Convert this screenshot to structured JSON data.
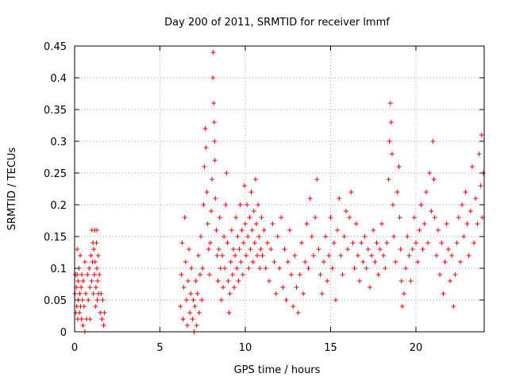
{
  "chart_data": {
    "type": "scatter",
    "title": "Day 200 of 2011, SRMTID for receiver lmmf",
    "xlabel": "GPS time / hours",
    "ylabel": "SRMTID / TECUs",
    "xlim": [
      0,
      24
    ],
    "ylim": [
      0,
      0.45
    ],
    "xticks": [
      0,
      5,
      10,
      15,
      20
    ],
    "xtick_labels": [
      "0",
      "5",
      "10",
      "15",
      "20"
    ],
    "yticks": [
      0,
      0.05,
      0.1,
      0.15,
      0.2,
      0.25,
      0.3,
      0.35,
      0.4,
      0.45
    ],
    "ytick_labels": [
      "0",
      "0.05",
      "0.1",
      "0.15",
      "0.2",
      "0.25",
      "0.3",
      "0.35",
      "0.4",
      "0.45"
    ],
    "grid": true,
    "marker": "plus",
    "color": "#ff0000",
    "series": [
      {
        "name": "SRMTID",
        "points": [
          [
            0.02,
            0.06
          ],
          [
            0.05,
            0.09
          ],
          [
            0.08,
            0.03
          ],
          [
            0.1,
            0.07
          ],
          [
            0.13,
            0.04
          ],
          [
            0.15,
            0.09
          ],
          [
            0.18,
            0.02
          ],
          [
            0.2,
            0.08
          ],
          [
            0.22,
            0.05
          ],
          [
            0.25,
            0.1
          ],
          [
            0.28,
            0.03
          ],
          [
            0.3,
            0.06
          ],
          [
            0.33,
            0.12
          ],
          [
            0.35,
            0.04
          ],
          [
            0.38,
            0.07
          ],
          [
            0.4,
            0.02
          ],
          [
            0.42,
            0.09
          ],
          [
            0.45,
            0.05
          ],
          [
            0.48,
            0.01
          ],
          [
            0.5,
            0.08
          ],
          [
            0.55,
            0.04
          ],
          [
            0.6,
            0.0
          ],
          [
            0.65,
            0.06
          ],
          [
            0.7,
            0.02
          ],
          [
            0.75,
            0.09
          ],
          [
            0.8,
            0.05
          ],
          [
            0.85,
            0.1
          ],
          [
            0.9,
            0.07
          ],
          [
            0.95,
            0.12
          ],
          [
            1.0,
            0.08
          ],
          [
            1.02,
            0.16
          ],
          [
            1.05,
            0.11
          ],
          [
            1.08,
            0.14
          ],
          [
            1.1,
            0.06
          ],
          [
            1.12,
            0.13
          ],
          [
            1.15,
            0.09
          ],
          [
            1.18,
            0.16
          ],
          [
            1.2,
            0.11
          ],
          [
            1.22,
            0.04
          ],
          [
            1.25,
            0.07
          ],
          [
            1.28,
            0.14
          ],
          [
            1.3,
            0.1
          ],
          [
            1.33,
            0.05
          ],
          [
            1.35,
            0.08
          ],
          [
            1.38,
            0.12
          ],
          [
            1.4,
            0.06
          ],
          [
            1.45,
            0.09
          ],
          [
            1.5,
            0.03
          ],
          [
            1.55,
            0.06
          ],
          [
            1.6,
            0.02
          ],
          [
            1.65,
            0.05
          ],
          [
            1.7,
            0.01
          ],
          [
            1.75,
            0.03
          ],
          [
            0.15,
            0.13
          ],
          [
            0.6,
            0.11
          ],
          [
            0.9,
            0.02
          ],
          [
            1.3,
            0.16
          ],
          [
            6.2,
            0.04
          ],
          [
            6.25,
            0.09
          ],
          [
            6.3,
            0.14
          ],
          [
            6.35,
            0.02
          ],
          [
            6.4,
            0.07
          ],
          [
            6.45,
            0.18
          ],
          [
            6.5,
            0.11
          ],
          [
            6.55,
            0.05
          ],
          [
            6.6,
            0.01
          ],
          [
            6.65,
            0.08
          ],
          [
            6.7,
            0.13
          ],
          [
            6.75,
            0.03
          ],
          [
            6.8,
            0.06
          ],
          [
            6.85,
            0.1
          ],
          [
            6.9,
            0.02
          ],
          [
            6.95,
            0.05
          ],
          [
            7.0,
            0.0
          ],
          [
            7.05,
            0.04
          ],
          [
            7.1,
            0.08
          ],
          [
            7.15,
            0.01
          ],
          [
            7.2,
            0.06
          ],
          [
            7.25,
            0.12
          ],
          [
            7.3,
            0.03
          ],
          [
            7.35,
            0.09
          ],
          [
            7.4,
            0.15
          ],
          [
            7.45,
            0.05
          ],
          [
            7.5,
            0.1
          ],
          [
            7.55,
            0.2
          ],
          [
            7.6,
            0.26
          ],
          [
            7.65,
            0.32
          ],
          [
            7.7,
            0.29
          ],
          [
            7.75,
            0.22
          ],
          [
            7.8,
            0.17
          ],
          [
            7.85,
            0.13
          ],
          [
            7.9,
            0.09
          ],
          [
            7.95,
            0.14
          ],
          [
            8.0,
            0.19
          ],
          [
            8.05,
            0.24
          ],
          [
            8.1,
            0.4
          ],
          [
            8.12,
            0.44
          ],
          [
            8.15,
            0.36
          ],
          [
            8.18,
            0.33
          ],
          [
            8.2,
            0.3
          ],
          [
            8.22,
            0.27
          ],
          [
            8.25,
            0.21
          ],
          [
            8.3,
            0.16
          ],
          [
            8.35,
            0.12
          ],
          [
            8.4,
            0.08
          ],
          [
            8.45,
            0.13
          ],
          [
            8.5,
            0.18
          ],
          [
            8.55,
            0.1
          ],
          [
            8.6,
            0.05
          ],
          [
            8.65,
            0.12
          ],
          [
            8.7,
            0.07
          ],
          [
            8.75,
            0.15
          ],
          [
            8.8,
            0.1
          ],
          [
            8.85,
            0.2
          ],
          [
            8.9,
            0.25
          ],
          [
            8.95,
            0.14
          ],
          [
            9.0,
            0.08
          ],
          [
            9.05,
            0.03
          ],
          [
            9.1,
            0.06
          ],
          [
            9.15,
            0.11
          ],
          [
            9.2,
            0.16
          ],
          [
            9.25,
            0.09
          ],
          [
            9.3,
            0.13
          ],
          [
            9.35,
            0.07
          ],
          [
            9.4,
            0.12
          ],
          [
            9.45,
            0.18
          ],
          [
            9.5,
            0.1
          ],
          [
            9.55,
            0.15
          ],
          [
            9.6,
            0.08
          ],
          [
            9.65,
            0.13
          ],
          [
            9.7,
            0.2
          ],
          [
            9.75,
            0.11
          ],
          [
            9.8,
            0.16
          ],
          [
            9.85,
            0.09
          ],
          [
            9.9,
            0.14
          ],
          [
            9.95,
            0.23
          ],
          [
            10.0,
            0.17
          ],
          [
            10.05,
            0.12
          ],
          [
            10.1,
            0.2
          ],
          [
            10.15,
            0.15
          ],
          [
            10.2,
            0.1
          ],
          [
            10.25,
            0.18
          ],
          [
            10.3,
            0.13
          ],
          [
            10.35,
            0.22
          ],
          [
            10.4,
            0.16
          ],
          [
            10.45,
            0.11
          ],
          [
            10.5,
            0.19
          ],
          [
            10.55,
            0.14
          ],
          [
            10.6,
            0.24
          ],
          [
            10.65,
            0.17
          ],
          [
            10.7,
            0.12
          ],
          [
            10.75,
            0.2
          ],
          [
            10.8,
            0.15
          ],
          [
            10.85,
            0.1
          ],
          [
            10.9,
            0.13
          ],
          [
            10.95,
            0.18
          ],
          [
            11.0,
            0.12
          ],
          [
            11.1,
            0.16
          ],
          [
            11.2,
            0.1
          ],
          [
            11.3,
            0.14
          ],
          [
            11.4,
            0.08
          ],
          [
            11.5,
            0.13
          ],
          [
            11.6,
            0.17
          ],
          [
            11.7,
            0.11
          ],
          [
            11.8,
            0.06
          ],
          [
            11.9,
            0.15
          ],
          [
            12.0,
            0.1
          ],
          [
            12.1,
            0.18
          ],
          [
            12.2,
            0.07
          ],
          [
            12.3,
            0.13
          ],
          [
            12.4,
            0.05
          ],
          [
            12.5,
            0.11
          ],
          [
            12.6,
            0.16
          ],
          [
            12.7,
            0.09
          ],
          [
            12.8,
            0.04
          ],
          [
            12.9,
            0.12
          ],
          [
            13.0,
            0.07
          ],
          [
            13.1,
            0.03
          ],
          [
            13.2,
            0.09
          ],
          [
            13.3,
            0.14
          ],
          [
            13.4,
            0.06
          ],
          [
            13.5,
            0.11
          ],
          [
            13.6,
            0.17
          ],
          [
            13.7,
            0.1
          ],
          [
            13.8,
            0.21
          ],
          [
            13.9,
            0.15
          ],
          [
            14.0,
            0.12
          ],
          [
            14.1,
            0.18
          ],
          [
            14.2,
            0.24
          ],
          [
            14.3,
            0.13
          ],
          [
            14.4,
            0.09
          ],
          [
            14.5,
            0.06
          ],
          [
            14.6,
            0.11
          ],
          [
            14.7,
            0.15
          ],
          [
            14.8,
            0.08
          ],
          [
            14.9,
            0.12
          ],
          [
            15.0,
            0.18
          ],
          [
            15.1,
            0.1
          ],
          [
            15.2,
            0.14
          ],
          [
            15.3,
            0.05
          ],
          [
            15.4,
            0.16
          ],
          [
            15.5,
            0.21
          ],
          [
            15.6,
            0.12
          ],
          [
            15.7,
            0.09
          ],
          [
            15.8,
            0.15
          ],
          [
            15.9,
            0.19
          ],
          [
            16.0,
            0.13
          ],
          [
            16.1,
            0.18
          ],
          [
            16.2,
            0.22
          ],
          [
            16.3,
            0.14
          ],
          [
            16.4,
            0.1
          ],
          [
            16.5,
            0.17
          ],
          [
            16.6,
            0.12
          ],
          [
            16.7,
            0.08
          ],
          [
            16.8,
            0.14
          ],
          [
            16.9,
            0.11
          ],
          [
            17.0,
            0.15
          ],
          [
            17.1,
            0.1
          ],
          [
            17.2,
            0.13
          ],
          [
            17.3,
            0.07
          ],
          [
            17.4,
            0.12
          ],
          [
            17.5,
            0.16
          ],
          [
            17.6,
            0.11
          ],
          [
            17.7,
            0.14
          ],
          [
            17.8,
            0.09
          ],
          [
            17.9,
            0.13
          ],
          [
            18.0,
            0.17
          ],
          [
            18.1,
            0.12
          ],
          [
            18.2,
            0.1
          ],
          [
            18.3,
            0.14
          ],
          [
            18.4,
            0.24
          ],
          [
            18.45,
            0.3
          ],
          [
            18.5,
            0.36
          ],
          [
            18.55,
            0.33
          ],
          [
            18.6,
            0.28
          ],
          [
            18.65,
            0.2
          ],
          [
            18.7,
            0.15
          ],
          [
            18.8,
            0.11
          ],
          [
            18.9,
            0.22
          ],
          [
            19.0,
            0.26
          ],
          [
            19.05,
            0.18
          ],
          [
            19.1,
            0.13
          ],
          [
            19.15,
            0.08
          ],
          [
            19.2,
            0.04
          ],
          [
            19.3,
            0.06
          ],
          [
            19.4,
            0.1
          ],
          [
            19.5,
            0.15
          ],
          [
            19.6,
            0.12
          ],
          [
            19.7,
            0.08
          ],
          [
            19.8,
            0.13
          ],
          [
            19.9,
            0.18
          ],
          [
            20.0,
            0.14
          ],
          [
            20.1,
            0.11
          ],
          [
            20.2,
            0.16
          ],
          [
            20.3,
            0.2
          ],
          [
            20.4,
            0.13
          ],
          [
            20.5,
            0.17
          ],
          [
            20.6,
            0.22
          ],
          [
            20.7,
            0.14
          ],
          [
            20.8,
            0.25
          ],
          [
            20.9,
            0.19
          ],
          [
            21.0,
            0.3
          ],
          [
            21.05,
            0.24
          ],
          [
            21.1,
            0.18
          ],
          [
            21.2,
            0.12
          ],
          [
            21.3,
            0.16
          ],
          [
            21.4,
            0.09
          ],
          [
            21.5,
            0.14
          ],
          [
            21.6,
            0.06
          ],
          [
            21.7,
            0.11
          ],
          [
            21.8,
            0.17
          ],
          [
            21.9,
            0.13
          ],
          [
            22.0,
            0.08
          ],
          [
            22.1,
            0.12
          ],
          [
            22.2,
            0.04
          ],
          [
            22.3,
            0.09
          ],
          [
            22.4,
            0.14
          ],
          [
            22.5,
            0.18
          ],
          [
            22.6,
            0.11
          ],
          [
            22.7,
            0.2
          ],
          [
            22.8,
            0.15
          ],
          [
            22.9,
            0.22
          ],
          [
            23.0,
            0.17
          ],
          [
            23.1,
            0.12
          ],
          [
            23.2,
            0.19
          ],
          [
            23.3,
            0.26
          ],
          [
            23.4,
            0.14
          ],
          [
            23.5,
            0.21
          ],
          [
            23.6,
            0.17
          ],
          [
            23.7,
            0.28
          ],
          [
            23.8,
            0.23
          ],
          [
            23.85,
            0.31
          ],
          [
            23.9,
            0.18
          ],
          [
            23.95,
            0.25
          ]
        ]
      }
    ]
  }
}
